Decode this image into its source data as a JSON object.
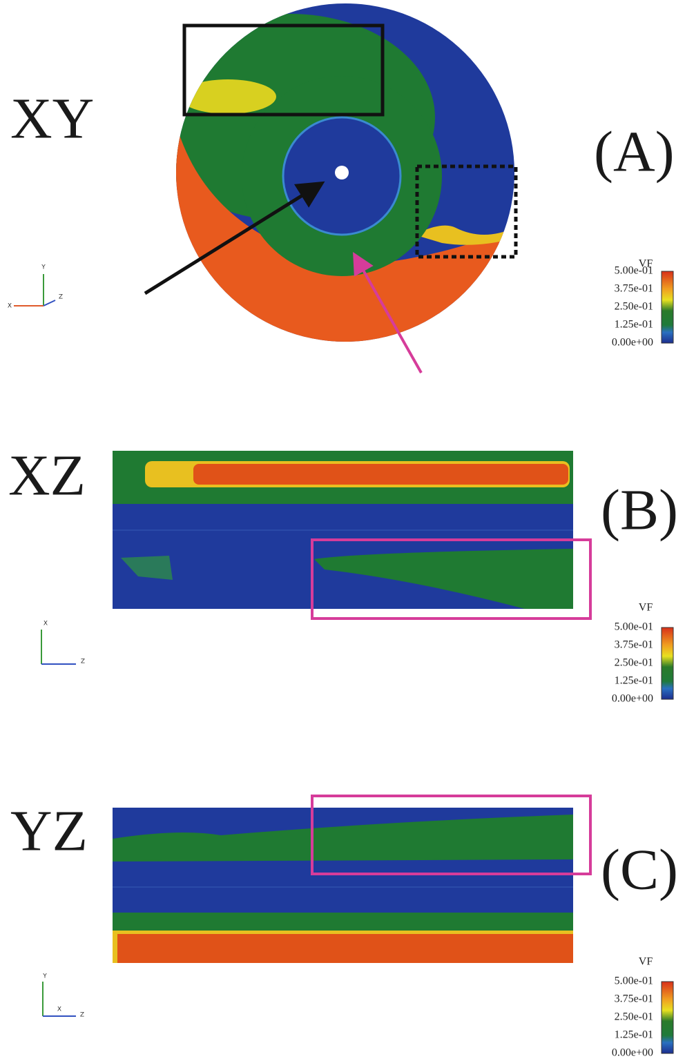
{
  "panels": [
    {
      "plane": "XY",
      "label": "(A)",
      "colorbar": {
        "title": "VF",
        "ticks": [
          "5.00e-01",
          "3.75e-01",
          "2.50e-01",
          "1.25e-01",
          "0.00e+00"
        ]
      },
      "triad": {
        "up": "Y",
        "side": "X",
        "right": "Z"
      }
    },
    {
      "plane": "XZ",
      "label": "(B)",
      "colorbar": {
        "title": "VF",
        "ticks": [
          "5.00e-01",
          "3.75e-01",
          "2.50e-01",
          "1.25e-01",
          "0.00e+00"
        ]
      },
      "triad": {
        "up": "X",
        "right": "Z"
      }
    },
    {
      "plane": "YZ",
      "label": "(C)",
      "colorbar": {
        "title": "VF",
        "ticks": [
          "5.00e-01",
          "3.75e-01",
          "2.50e-01",
          "1.25e-01",
          "0.00e+00"
        ]
      },
      "triad": {
        "up": "Y",
        "side": "X",
        "right": "Z"
      }
    }
  ]
}
